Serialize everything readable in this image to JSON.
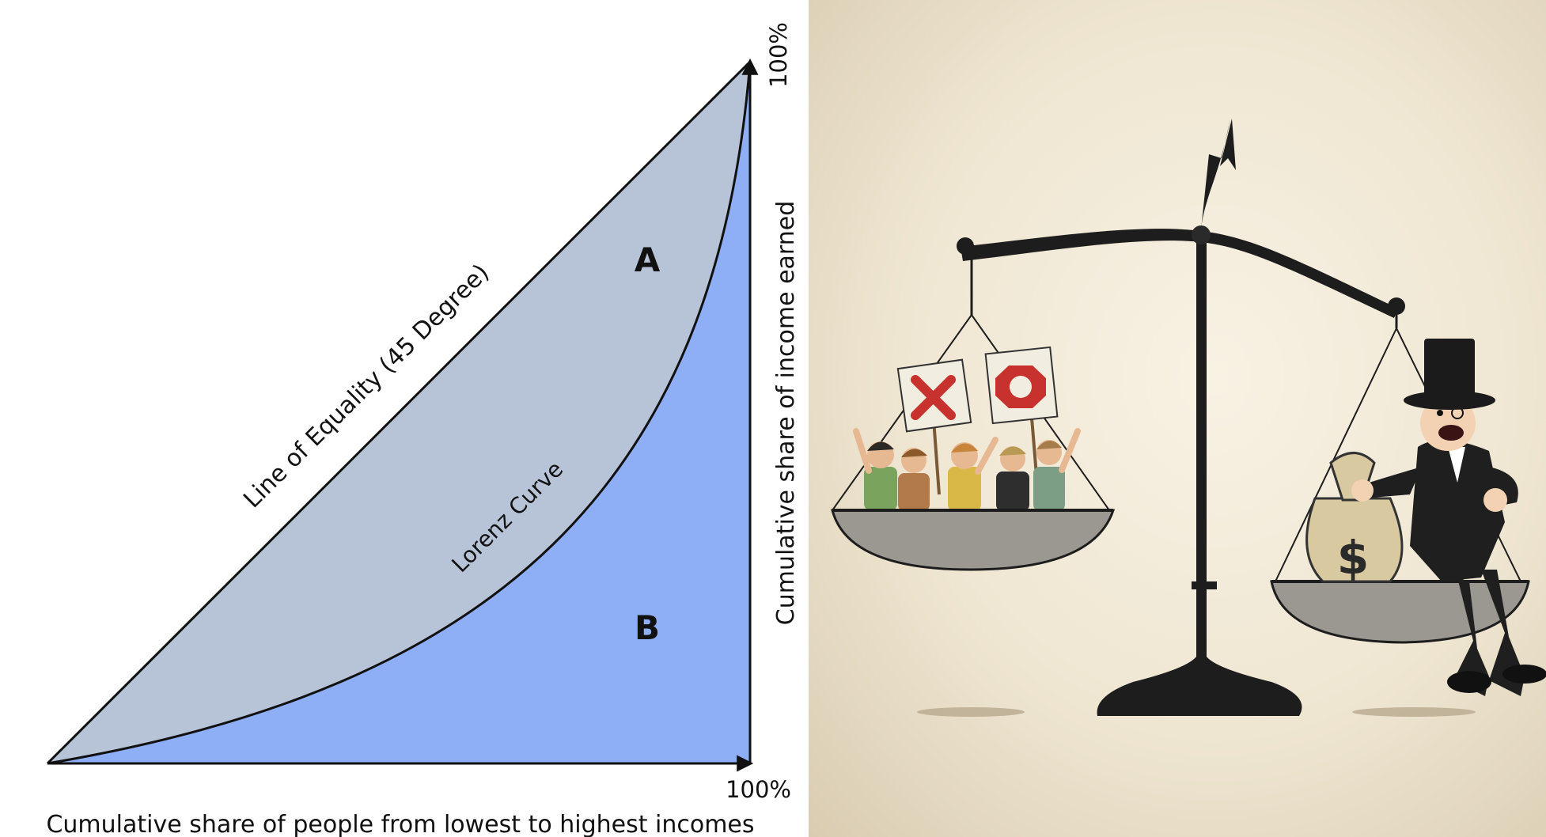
{
  "diagram": {
    "area_a_label": "A",
    "area_b_label": "B",
    "equality_line_label": "Line of Equality (45 Degree)",
    "lorenz_curve_label": "Lorenz Curve",
    "x_axis_end_label": "100%",
    "y_axis_end_label": "100%",
    "x_axis_title": "Cumulative share of people from lowest to highest incomes",
    "y_axis_title": "Cumulative share of income earned",
    "colors": {
      "area_a": "#b7c4d8",
      "area_b": "#8eaff5",
      "lines": "#111111"
    }
  },
  "illustration": {
    "sign_x_icon": "x-mark-icon",
    "sign_stop_icon": "stop-hand-icon",
    "money_bag_symbol": "$"
  }
}
